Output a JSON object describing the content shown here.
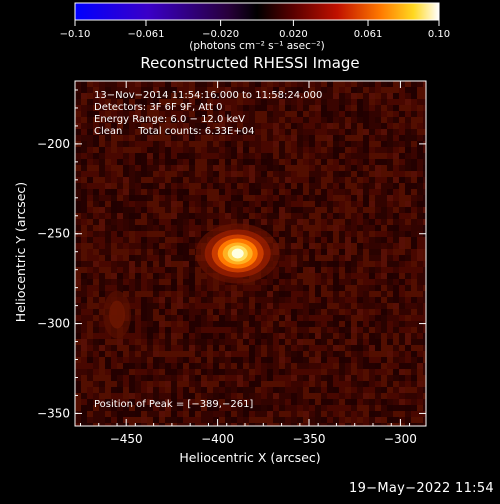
{
  "chart_data": {
    "type": "heatmap",
    "title": "Reconstructed RHESSI Image",
    "xlabel": "Heliocentric X (arcsec)",
    "ylabel": "Heliocentric Y (arcsec)",
    "xlim": [
      -478,
      -286
    ],
    "ylim": [
      -357,
      -165
    ],
    "x_ticks": [
      -450,
      -400,
      -350,
      -300
    ],
    "x_tick_labels": [
      "−450",
      "−400",
      "−350",
      "−300"
    ],
    "y_ticks": [
      -200,
      -250,
      -300,
      -350
    ],
    "y_tick_labels": [
      "−200",
      "−250",
      "−300",
      "−350"
    ],
    "colorbar": {
      "min": -0.1,
      "max": 0.1,
      "ticks": [
        -0.1,
        -0.061,
        -0.02,
        0.02,
        0.061,
        0.1
      ],
      "tick_labels": [
        "−0.10",
        "−0.061",
        "−0.020",
        "0.020",
        "0.061",
        "0.10"
      ],
      "unit_label": "(photons cm⁻² s⁻¹ asec⁻²)"
    },
    "annotations": [
      "13−Nov−2014 11:54:16.000 to 11:58:24.000",
      "Detectors: 3F 6F 9F, Att 0",
      "Energy Range: 6.0 − 12.0 keV",
      "Clean     Total counts: 6.33E+04"
    ],
    "peak_label": "Position of Peak = [−389,−261]",
    "peak": {
      "x": -389,
      "y": -261
    },
    "secondary_source": {
      "x": -455,
      "y": -295
    },
    "grid": false
  },
  "footer_timestamp": "19−May−2022 11:54"
}
